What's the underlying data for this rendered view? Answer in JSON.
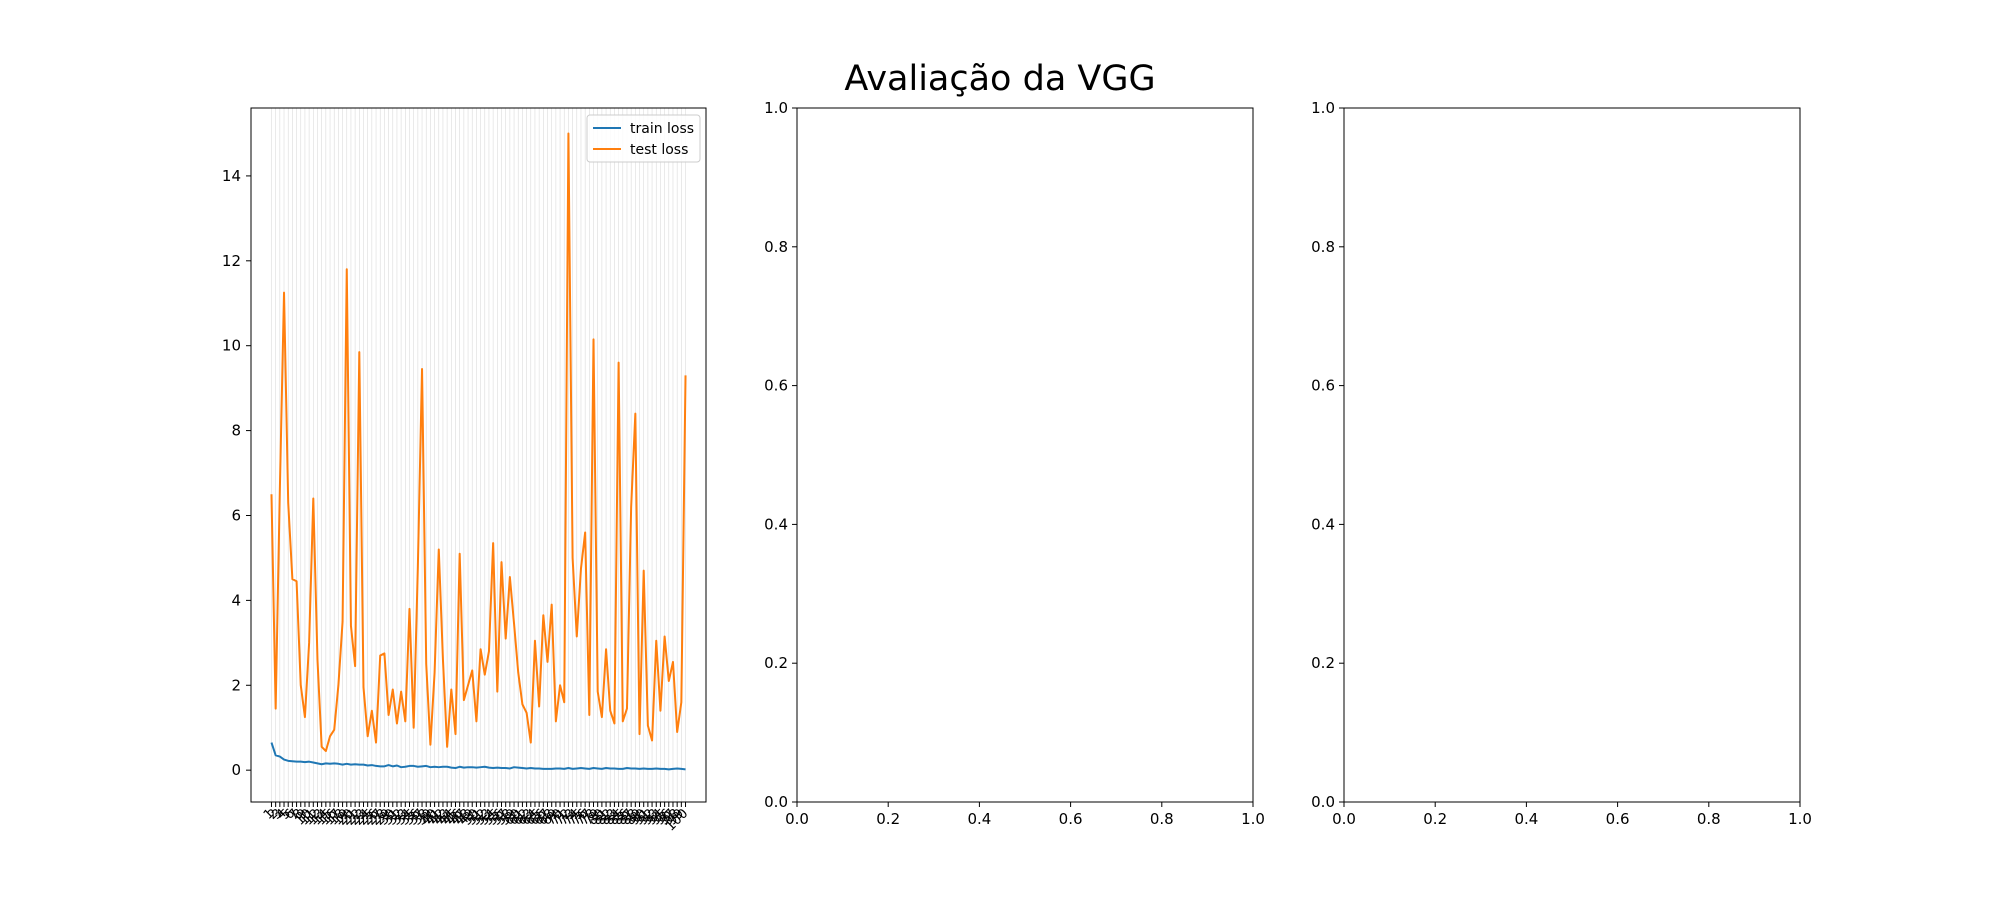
{
  "figure": {
    "suptitle": "Avaliação da VGG"
  },
  "chart_data": [
    {
      "type": "line",
      "title": "",
      "xlabel": "",
      "ylabel": "",
      "x_range": [
        1,
        100
      ],
      "ylim": [
        -0.75,
        15.6
      ],
      "yticks": [
        0,
        2,
        4,
        6,
        8,
        10,
        12,
        14
      ],
      "xticks_note": "every epoch 1..100 is a tick label (overlapping, rotated 45 degrees)",
      "grid": "vertical lines on x",
      "legend": {
        "position": "upper-right",
        "entries": [
          "train loss",
          "test loss"
        ]
      },
      "series": [
        {
          "name": "train loss",
          "color": "#1f77b4",
          "values": [
            0.65,
            0.35,
            0.32,
            0.25,
            0.22,
            0.21,
            0.2,
            0.2,
            0.19,
            0.2,
            0.18,
            0.16,
            0.14,
            0.16,
            0.15,
            0.16,
            0.15,
            0.13,
            0.15,
            0.13,
            0.14,
            0.13,
            0.13,
            0.11,
            0.12,
            0.1,
            0.09,
            0.09,
            0.12,
            0.09,
            0.11,
            0.07,
            0.08,
            0.1,
            0.1,
            0.08,
            0.09,
            0.1,
            0.07,
            0.08,
            0.07,
            0.08,
            0.08,
            0.06,
            0.05,
            0.08,
            0.06,
            0.07,
            0.07,
            0.06,
            0.07,
            0.08,
            0.06,
            0.05,
            0.06,
            0.05,
            0.05,
            0.04,
            0.07,
            0.06,
            0.05,
            0.04,
            0.05,
            0.04,
            0.04,
            0.03,
            0.03,
            0.03,
            0.04,
            0.04,
            0.03,
            0.05,
            0.03,
            0.04,
            0.05,
            0.04,
            0.03,
            0.05,
            0.04,
            0.03,
            0.05,
            0.04,
            0.04,
            0.03,
            0.03,
            0.05,
            0.04,
            0.04,
            0.03,
            0.04,
            0.03,
            0.03,
            0.04,
            0.03,
            0.03,
            0.02,
            0.03,
            0.04,
            0.03,
            0.02
          ]
        },
        {
          "name": "test loss",
          "color": "#ff7f0e",
          "values": [
            6.5,
            1.45,
            6.6,
            11.25,
            6.3,
            4.5,
            4.45,
            2.0,
            1.25,
            3.0,
            6.4,
            2.6,
            0.55,
            0.45,
            0.8,
            0.95,
            2.0,
            3.5,
            11.8,
            3.4,
            2.45,
            9.85,
            1.95,
            0.8,
            1.4,
            0.65,
            2.7,
            2.75,
            1.3,
            1.9,
            1.1,
            1.85,
            1.15,
            3.8,
            1.0,
            4.8,
            9.45,
            2.5,
            0.6,
            2.3,
            5.2,
            2.6,
            0.55,
            1.9,
            0.85,
            5.1,
            1.65,
            2.0,
            2.35,
            1.15,
            2.85,
            2.25,
            2.8,
            5.35,
            1.85,
            4.9,
            3.1,
            4.55,
            3.45,
            2.3,
            1.55,
            1.35,
            0.65,
            3.05,
            1.5,
            3.65,
            2.55,
            3.9,
            1.15,
            2.0,
            1.6,
            15.0,
            5.0,
            3.15,
            4.75,
            5.6,
            1.3,
            10.15,
            1.85,
            1.25,
            2.85,
            1.4,
            1.1,
            9.6,
            1.15,
            1.45,
            6.2,
            8.4,
            0.85,
            4.7,
            1.05,
            0.7,
            3.05,
            1.4,
            3.15,
            2.1,
            2.55,
            0.9,
            1.6,
            9.3
          ]
        }
      ]
    },
    {
      "type": "line",
      "title": "",
      "xlabel": "",
      "ylabel": "",
      "xlim": [
        0,
        1
      ],
      "ylim": [
        0,
        1
      ],
      "xticks": [
        "0.0",
        "0.2",
        "0.4",
        "0.6",
        "0.8",
        "1.0"
      ],
      "yticks": [
        "0.0",
        "0.2",
        "0.4",
        "0.6",
        "0.8",
        "1.0"
      ],
      "series": []
    },
    {
      "type": "line",
      "title": "",
      "xlabel": "",
      "ylabel": "",
      "xlim": [
        0,
        1
      ],
      "ylim": [
        0,
        1
      ],
      "xticks": [
        "0.0",
        "0.2",
        "0.4",
        "0.6",
        "0.8",
        "1.0"
      ],
      "yticks": [
        "0.0",
        "0.2",
        "0.4",
        "0.6",
        "0.8",
        "1.0"
      ],
      "series": []
    }
  ]
}
